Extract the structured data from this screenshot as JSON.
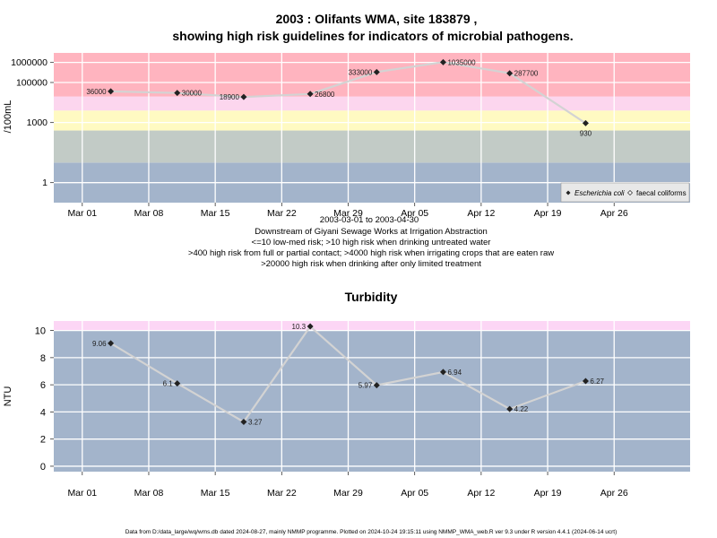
{
  "colors": {
    "zone_low": "#a3b4cb",
    "zone_gray": "#c2cbc6",
    "zone_yellow": "#fffac2",
    "zone_pink": "#fcd6ee",
    "zone_red": "#ffb4bf",
    "turb_top": "#fcd6f5",
    "line": "#d3d3d3",
    "grid": "#ffffff",
    "marker": "#222222"
  },
  "top_chart": {
    "title_line1": "2003 : Olifants WMA, site 183879 ,",
    "title_line2": "showing high risk guidelines for indicators of microbial pathogens.",
    "ylabel": "/100mL",
    "date_range": "2003-03-01 to 2003-04-30",
    "caption": [
      "Downstream of Giyani Sewage Works at Irrigation Abstraction",
      "<=10 low-med risk; >10 high risk when drinking untreated water",
      ">400 high risk from full or partial contact; >4000 high risk when irrigating crops that are eaten raw",
      ">20000 high risk when drinking after only limited treatment"
    ],
    "legend": {
      "ecoli": "Escherichia coli",
      "faecal": "faecal coliforms"
    }
  },
  "bottom_chart": {
    "title": "Turbidity",
    "ylabel": "NTU"
  },
  "x_ticks": [
    "Mar 01",
    "Mar 08",
    "Mar 15",
    "Mar 22",
    "Mar 29",
    "Apr 05",
    "Apr 12",
    "Apr 19",
    "Apr 26"
  ],
  "footer": "Data from D:/data_large/wq/wms.db dated 2024-08-27, mainly NMMP programme. Plotted on 2024-10-24 19:15:11 using NMMP_WMA_web.R ver 9.3 under R version 4.4.1 (2024-06-14 ucrt)",
  "chart_data": [
    {
      "type": "line",
      "title": "2003 : Olifants WMA, site 183879 , showing high risk guidelines for indicators of microbial pathogens.",
      "ylabel": "/100mL",
      "y_scale": "log",
      "y_ticks": [
        "1",
        "1000",
        "100000",
        "1000000"
      ],
      "ylim": [
        0.1,
        3000000
      ],
      "xlim": [
        "2003-02-26",
        "2003-05-04"
      ],
      "grid": true,
      "legend_position": "bottom-right",
      "risk_bands": [
        {
          "from": 0.1,
          "to": 10,
          "color": "#a3b4cb"
        },
        {
          "from": 10,
          "to": 400,
          "color": "#c2cbc6"
        },
        {
          "from": 400,
          "to": 4000,
          "color": "#fffac2"
        },
        {
          "from": 4000,
          "to": 20000,
          "color": "#fcd6ee"
        },
        {
          "from": 20000,
          "to": 3000000,
          "color": "#ffb4bf"
        }
      ],
      "series": [
        {
          "name": "Escherichia coli",
          "x": [
            "2003-03-04",
            "2003-03-11",
            "2003-03-18",
            "2003-03-25",
            "2003-04-01",
            "2003-04-08",
            "2003-04-15",
            "2003-04-23"
          ],
          "values": [
            36000,
            30000,
            18900,
            26800,
            333000,
            1035000,
            287700,
            930
          ],
          "labels": [
            "36000",
            "30000",
            "18900",
            "26800",
            "333000",
            "1035000",
            "287700",
            "930"
          ],
          "label_side": [
            "left",
            "right",
            "left",
            "right",
            "left",
            "right",
            "right",
            "below"
          ]
        }
      ]
    },
    {
      "type": "line",
      "title": "Turbidity",
      "ylabel": "NTU",
      "y_ticks": [
        0,
        2,
        4,
        6,
        8,
        10
      ],
      "ylim": [
        -0.4,
        10.7
      ],
      "xlim": [
        "2003-02-26",
        "2003-05-04"
      ],
      "grid": true,
      "bands": [
        {
          "from": -0.4,
          "to": 10,
          "color": "#a3b4cb"
        },
        {
          "from": 10,
          "to": 10.7,
          "color": "#fcd6f5"
        }
      ],
      "series": [
        {
          "x": [
            "2003-03-04",
            "2003-03-11",
            "2003-03-18",
            "2003-03-25",
            "2003-04-01",
            "2003-04-08",
            "2003-04-15",
            "2003-04-23"
          ],
          "values": [
            9.06,
            6.1,
            3.27,
            10.3,
            5.97,
            6.94,
            4.22,
            6.27
          ],
          "labels": [
            "9.06",
            "6.1",
            "3.27",
            "10.3",
            "5.97",
            "6.94",
            "4.22",
            "6.27"
          ],
          "label_side": [
            "left",
            "left",
            "right",
            "left",
            "left",
            "right",
            "right",
            "right"
          ]
        }
      ]
    }
  ]
}
